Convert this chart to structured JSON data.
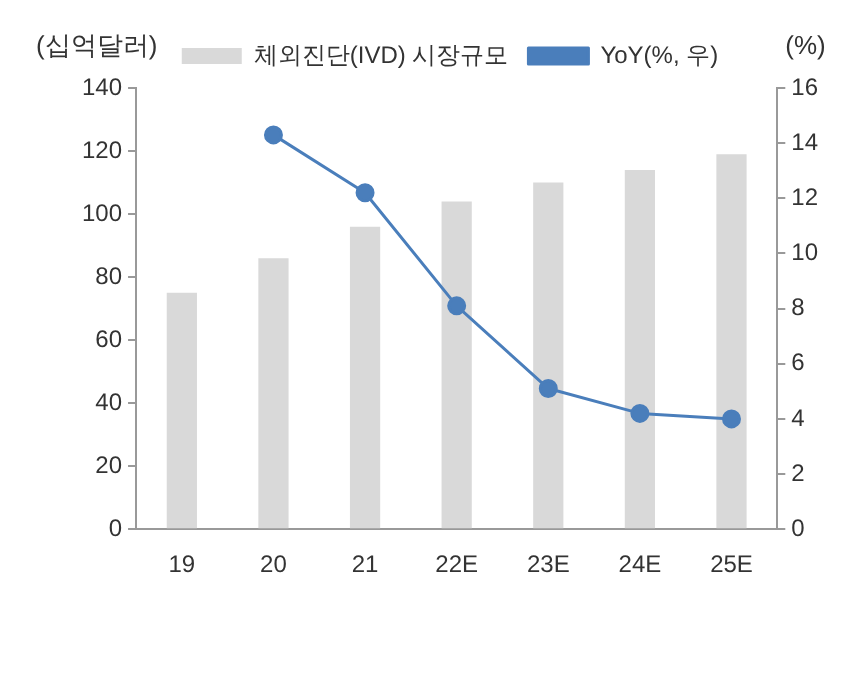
{
  "chart_data": {
    "type": "bar",
    "categories": [
      "19",
      "20",
      "21",
      "22E",
      "23E",
      "24E",
      "25E"
    ],
    "ylabel": "(십억달러)",
    "y2label": "(%)",
    "series": [
      {
        "name": "체외진단(IVD) 시장규모",
        "color": "#d9d9d9",
        "values": [
          75,
          86,
          96,
          104,
          110,
          114,
          119
        ]
      },
      {
        "name": "YoY(%, 우)",
        "type": "line",
        "axis": "y2",
        "color": "#4a7ebb",
        "marker": "circle",
        "values": [
          null,
          14.3,
          12.2,
          8.1,
          5.1,
          4.2,
          4.0
        ]
      }
    ],
    "ylim": [
      0,
      140
    ],
    "yticks": [
      0,
      20,
      40,
      60,
      80,
      100,
      120,
      140
    ],
    "y2lim": [
      0,
      16
    ],
    "y2ticks": [
      0,
      2,
      4,
      6,
      8,
      10,
      12,
      14,
      16
    ],
    "grid": false,
    "legend": "top"
  }
}
